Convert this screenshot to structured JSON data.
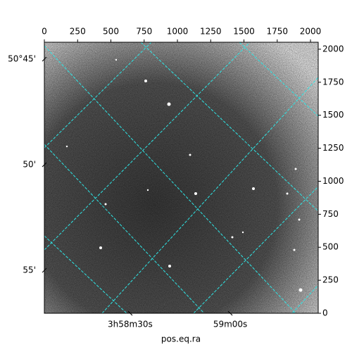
{
  "chart_data": {
    "type": "image",
    "xlabel": "pos.eq.ra",
    "xlim": [
      0,
      2058
    ],
    "ylim": [
      0,
      2053
    ],
    "xticks": [
      0,
      250,
      500,
      750,
      1000,
      1250,
      1500,
      1750,
      2000
    ],
    "yticks": [
      0,
      250,
      500,
      750,
      1000,
      1250,
      1500,
      1750,
      2000
    ],
    "left_ticks": [
      {
        "value": 1925,
        "label": "50°45'"
      },
      {
        "value": 1125,
        "label": "50'"
      },
      {
        "value": 325,
        "label": "55'"
      }
    ],
    "bottom_ticks": [
      {
        "value": 645,
        "label": "3h58m30s"
      },
      {
        "value": 1397,
        "label": "59m00s"
      }
    ]
  }
}
